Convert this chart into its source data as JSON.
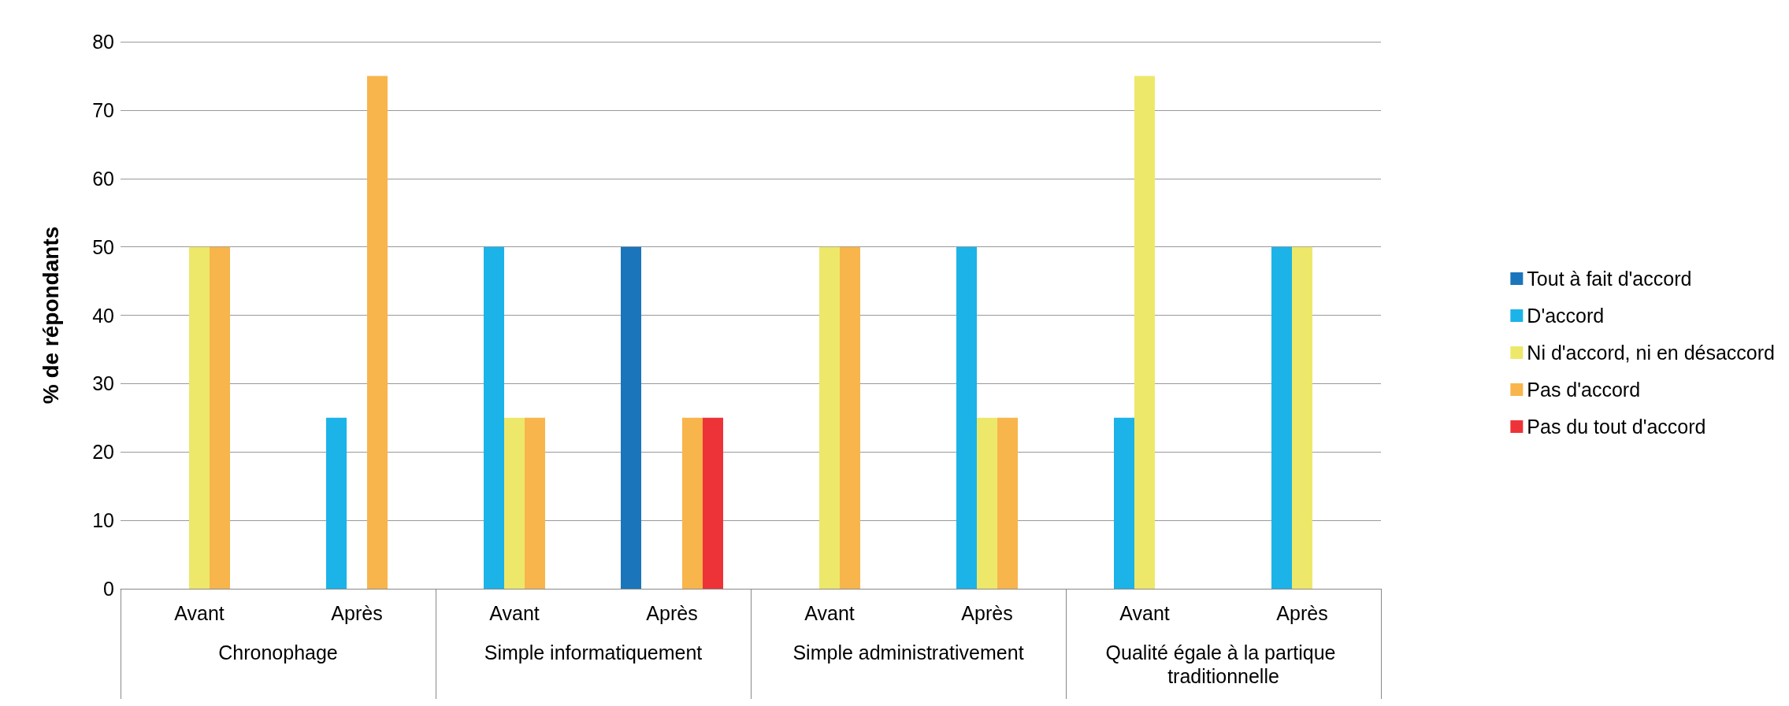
{
  "chart_data": {
    "type": "bar",
    "ylabel": "% de répondants",
    "categories": [
      "Avant",
      "Après",
      "Avant",
      "Après",
      "Avant",
      "Après",
      "Avant",
      "Après"
    ],
    "annotations": [
      "Chronophage",
      "Simple informatiquement",
      "Simple administrativement",
      "Qualité égale à la partique traditionnelle"
    ],
    "series": [
      {
        "name": "Tout à fait d'accord",
        "color": "#1a75bb",
        "values": [
          null,
          null,
          null,
          50,
          null,
          null,
          null,
          null
        ]
      },
      {
        "name": "D'accord",
        "color": "#1bb3e8",
        "values": [
          null,
          25,
          50,
          null,
          null,
          50,
          25,
          50
        ]
      },
      {
        "name": "Ni d'accord, ni en désaccord",
        "color": "#ede86a",
        "values": [
          50,
          null,
          25,
          null,
          50,
          25,
          75,
          50
        ]
      },
      {
        "name": "Pas d'accord",
        "color": "#f8b54c",
        "values": [
          50,
          75,
          25,
          25,
          50,
          25,
          null,
          null
        ]
      },
      {
        "name": "Pas du tout d'accord",
        "color": "#ee3338",
        "values": [
          null,
          null,
          null,
          25,
          null,
          null,
          null,
          null
        ]
      }
    ],
    "ylim": [
      0,
      80
    ],
    "yticks": [
      0,
      10,
      20,
      30,
      40,
      50,
      60,
      70,
      80
    ],
    "grid": "y",
    "legend": "right"
  }
}
